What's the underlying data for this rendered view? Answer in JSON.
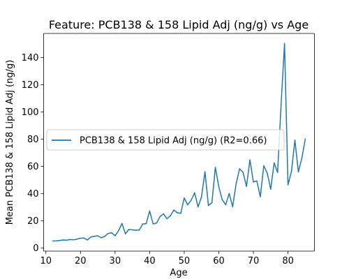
{
  "chart_data": {
    "type": "line",
    "title": "Feature: PCB138 & 158 Lipid Adj (ng/g) vs Age",
    "xlabel": "Age",
    "ylabel": "Mean PCB138 & 158 Lipid Adj (ng/g)",
    "xlim": [
      9.35,
      87.65
    ],
    "ylim": [
      -2.2,
      157.7
    ],
    "xticks": [
      10,
      20,
      30,
      40,
      50,
      60,
      70,
      80
    ],
    "yticks": [
      0,
      20,
      40,
      60,
      80,
      100,
      120,
      140
    ],
    "grid": false,
    "legend_position": "center-left",
    "series": [
      {
        "name": "PCB138 & 158 Lipid Adj (ng/g) (R2=0.66)",
        "color": "#1f77b4",
        "x": [
          12,
          13,
          14,
          15,
          16,
          17,
          18,
          19,
          20,
          21,
          22,
          23,
          24,
          25,
          26,
          27,
          28,
          29,
          30,
          31,
          32,
          33,
          34,
          35,
          36,
          37,
          38,
          39,
          40,
          41,
          42,
          43,
          44,
          45,
          46,
          47,
          48,
          49,
          50,
          51,
          52,
          53,
          54,
          55,
          56,
          57,
          58,
          59,
          60,
          61,
          62,
          63,
          64,
          65,
          66,
          67,
          68,
          69,
          70,
          71,
          72,
          73,
          74,
          75,
          76,
          77,
          78,
          79,
          80,
          81,
          82,
          83,
          84,
          85
        ],
        "y": [
          5.2,
          5.3,
          5.6,
          6.0,
          5.8,
          6.3,
          6.1,
          6.6,
          7.2,
          7.4,
          6.0,
          8.1,
          8.7,
          9.0,
          7.6,
          8.6,
          10.7,
          11.3,
          9.1,
          12.7,
          18.1,
          10.5,
          13.7,
          13.4,
          13.1,
          13.3,
          17.7,
          18.0,
          27.3,
          17.8,
          18.4,
          23.2,
          25.2,
          21.6,
          23.7,
          28.0,
          26.0,
          25.6,
          36.8,
          31.8,
          35.2,
          40.7,
          30.3,
          37.7,
          56.1,
          31.3,
          33.3,
          59.3,
          45.0,
          35.5,
          31.9,
          40.1,
          30.4,
          47.2,
          58.2,
          55.7,
          45.3,
          64.8,
          48.6,
          49.3,
          37.8,
          60.5,
          55.1,
          43.3,
          62.6,
          55.6,
          105.0,
          150.4,
          46.5,
          56.4,
          79.3,
          56.0,
          66.0,
          80.1
        ]
      }
    ]
  }
}
